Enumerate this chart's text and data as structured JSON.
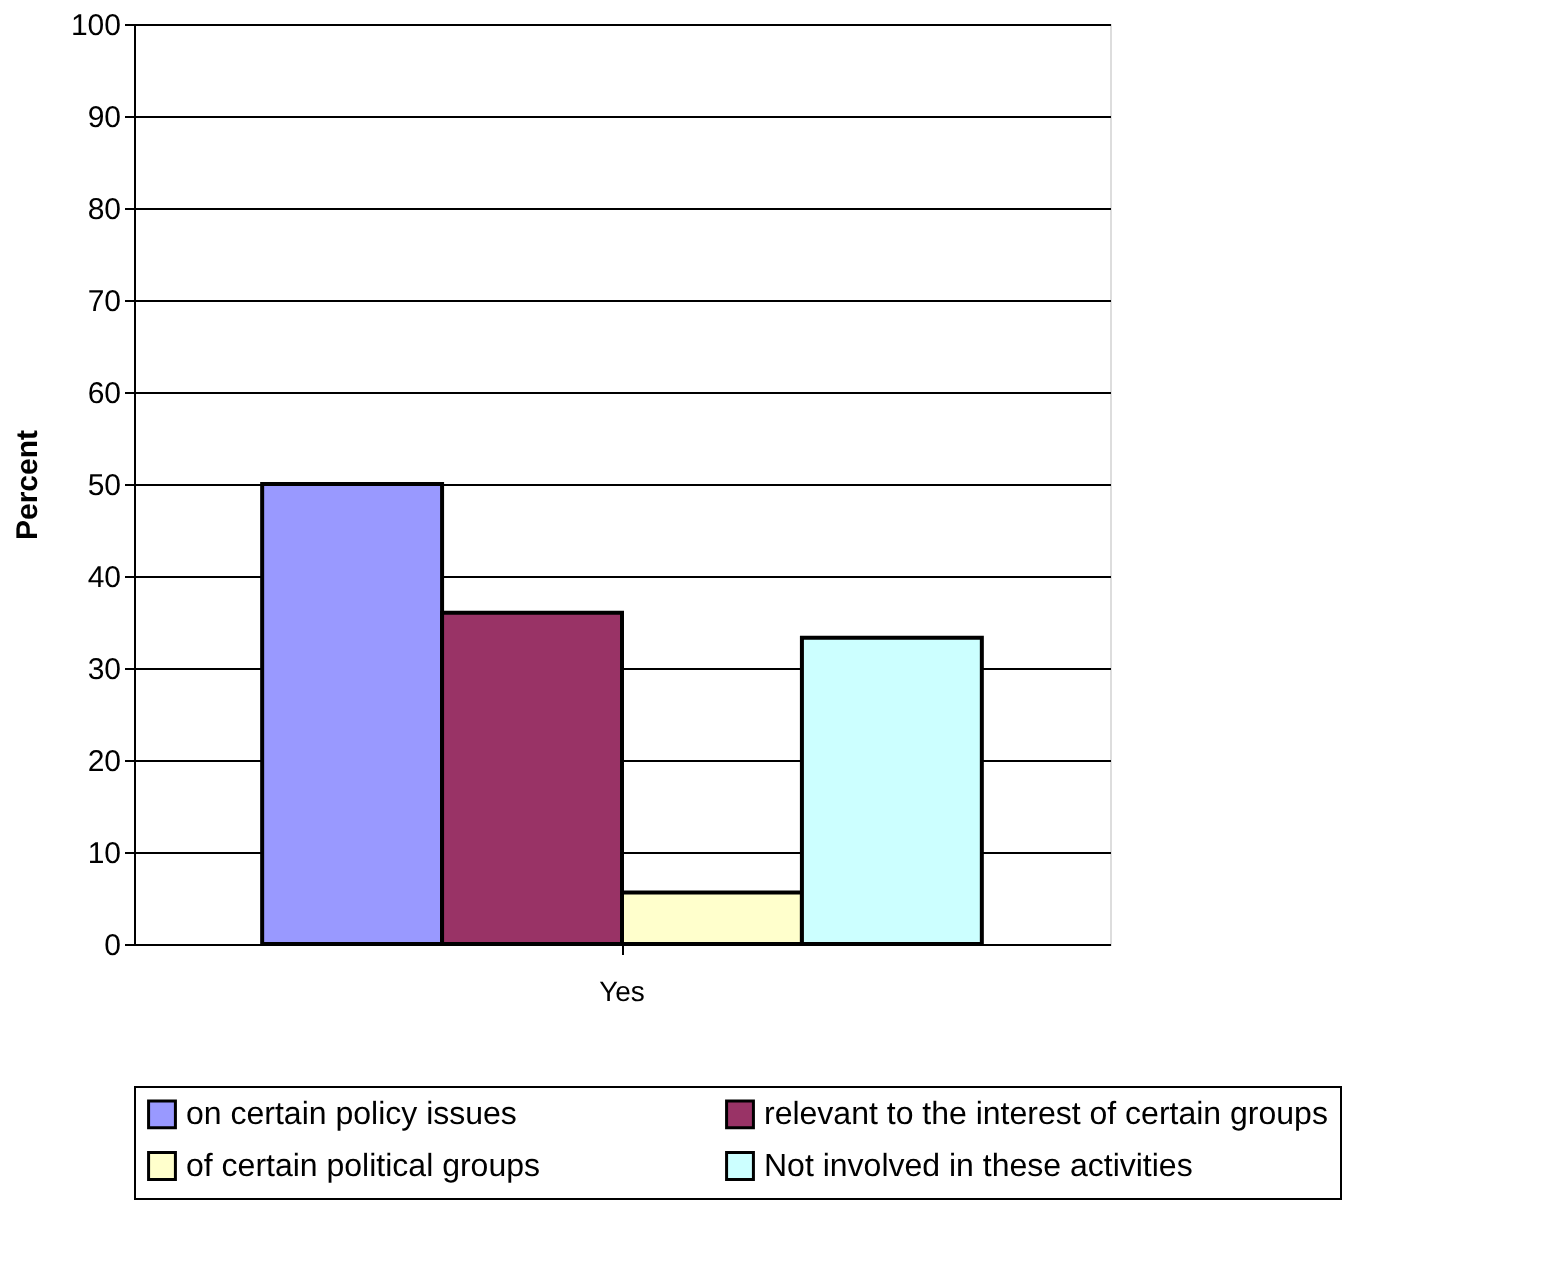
{
  "chart_data": {
    "type": "bar",
    "ylabel": "Percent",
    "categories": [
      "Yes"
    ],
    "series": [
      {
        "name": "on certain policy issues",
        "color": "#9999ff",
        "values": [
          50
        ]
      },
      {
        "name": "relevant to the interest of certain groups",
        "color": "#993366",
        "values": [
          36
        ]
      },
      {
        "name": "of certain political groups",
        "color": "#ffffcc",
        "values": [
          5.6
        ]
      },
      {
        "name": "Not involved in these activities",
        "color": "#ccffff",
        "values": [
          33.3
        ]
      }
    ],
    "ylim": [
      0,
      100
    ],
    "yticks": [
      0,
      10,
      20,
      30,
      40,
      50,
      60,
      70,
      80,
      90,
      100
    ],
    "grid": "y",
    "legend": "bottom"
  }
}
